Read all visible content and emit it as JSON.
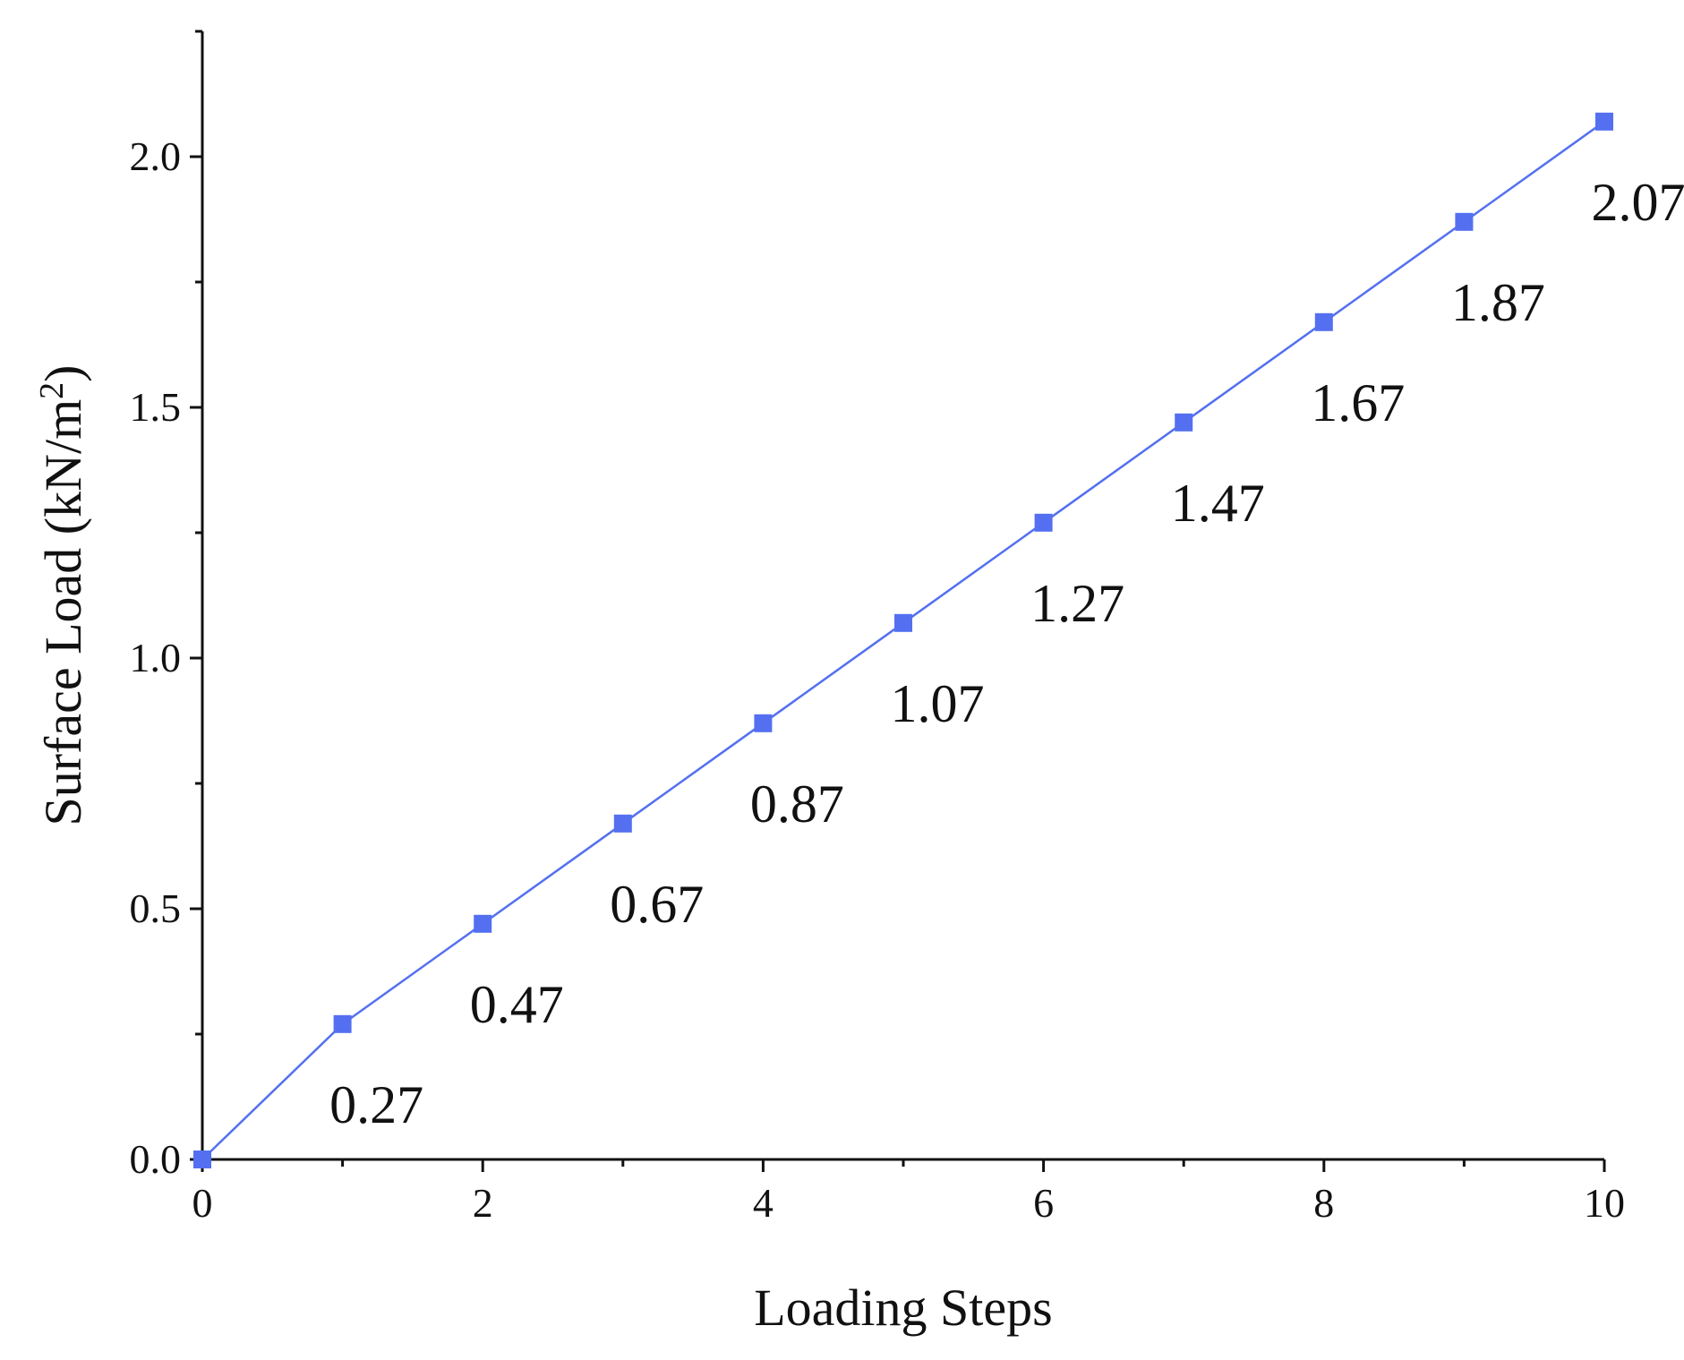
{
  "chart_data": {
    "type": "line",
    "title": "",
    "xlabel": "Loading Steps",
    "ylabel": "Surface Load (kN/m",
    "ylabel_superscript": "2",
    "ylabel_suffix": ")",
    "xlim": [
      0,
      10
    ],
    "ylim": [
      0,
      2.25
    ],
    "x_ticks": [
      "0",
      "2",
      "4",
      "6",
      "8",
      "10"
    ],
    "y_ticks": [
      "0.0",
      "0.5",
      "1.0",
      "1.5",
      "2.0"
    ],
    "grid": false,
    "legend": "none",
    "series": [
      {
        "x": [
          0,
          1,
          2,
          3,
          4,
          5,
          6,
          7,
          8,
          9,
          10
        ],
        "y": [
          0,
          0.27,
          0.47,
          0.67,
          0.87,
          1.07,
          1.27,
          1.47,
          1.67,
          1.87,
          2.07
        ],
        "marker": "square",
        "color": "#5470f0"
      }
    ],
    "data_labels": [
      "0.27",
      "0.47",
      "0.67",
      "0.87",
      "1.07",
      "1.27",
      "1.47",
      "1.67",
      "1.87",
      "2.07"
    ]
  }
}
